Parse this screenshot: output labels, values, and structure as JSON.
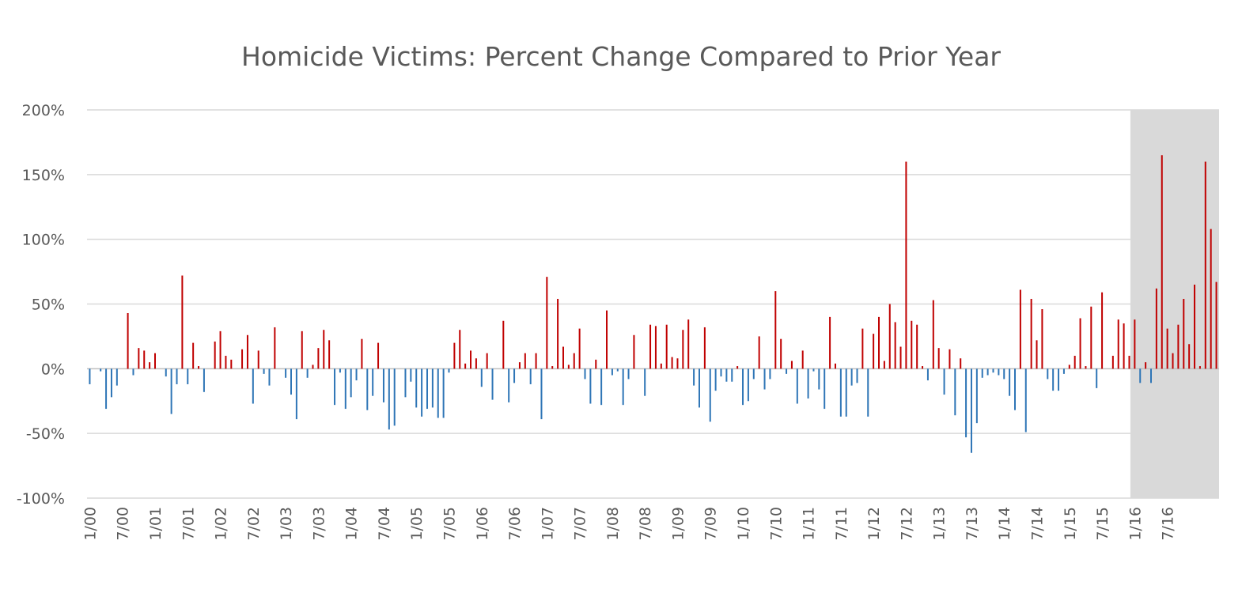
{
  "chart_data": {
    "type": "bar",
    "title": "Homicide Victims: Percent Change Compared to Prior Year",
    "xlabel": "",
    "ylabel": "",
    "ylim": [
      -100,
      200
    ],
    "yticks": [
      200,
      150,
      100,
      50,
      0,
      -50,
      -100
    ],
    "y_tick_labels": [
      "200%",
      "150%",
      "100%",
      "50%",
      "0%",
      "-50%",
      "-100%"
    ],
    "x_tick_labels": [
      "1/00",
      "7/00",
      "1/01",
      "7/01",
      "1/02",
      "7/02",
      "1/03",
      "7/03",
      "1/04",
      "7/04",
      "1/05",
      "7/05",
      "1/06",
      "7/06",
      "1/07",
      "7/07",
      "1/08",
      "7/08",
      "1/09",
      "7/09",
      "1/10",
      "7/10",
      "1/11",
      "7/11",
      "1/12",
      "7/12",
      "1/13",
      "7/13",
      "1/14",
      "7/14",
      "1/15",
      "7/15",
      "1/16",
      "7/16"
    ],
    "x_range": [
      "1/00",
      "12/16"
    ],
    "grid": true,
    "legend": "none",
    "highlight_region": {
      "from": "1/16",
      "to": "12/16",
      "color": "#d9d9d9"
    },
    "colors": {
      "positive": "#c00000",
      "negative": "#2e75b6",
      "grid": "#d9d9d9",
      "zero_line": "#bfbfbf"
    },
    "values": [
      -12,
      0,
      -2,
      -31,
      -22,
      -13,
      0,
      43,
      -5,
      16,
      14,
      5,
      12,
      0,
      -6,
      -35,
      -12,
      72,
      -12,
      20,
      2,
      -18,
      0,
      21,
      29,
      10,
      7,
      0,
      15,
      26,
      -27,
      14,
      -4,
      -13,
      32,
      0,
      -7,
      -20,
      -39,
      29,
      -7,
      3,
      16,
      30,
      22,
      -28,
      -3,
      -31,
      -22,
      -9,
      23,
      -32,
      -21,
      20,
      -26,
      -47,
      -44,
      0,
      -22,
      -10,
      -30,
      -37,
      -31,
      -30,
      -38,
      -38,
      -3,
      20,
      30,
      4,
      14,
      8,
      -14,
      12,
      -24,
      0,
      37,
      -26,
      -11,
      5,
      12,
      -12,
      12,
      -39,
      71,
      2,
      54,
      17,
      3,
      12,
      31,
      -8,
      -27,
      7,
      -28,
      45,
      -5,
      -2,
      -28,
      -8,
      26,
      0,
      -21,
      34,
      33,
      4,
      34,
      9,
      8,
      30,
      38,
      -13,
      -30,
      32,
      -41,
      -17,
      -6,
      -10,
      -10,
      2,
      -28,
      -25,
      -8,
      25,
      -16,
      -8,
      60,
      23,
      -4,
      6,
      -27,
      14,
      -23,
      -2,
      -16,
      -31,
      40,
      4,
      -37,
      -37,
      -13,
      -11,
      31,
      -37,
      27,
      40,
      6,
      50,
      36,
      17,
      160,
      37,
      34,
      2,
      -9,
      53,
      16,
      -20,
      15,
      -36,
      8,
      -53,
      -65,
      -42,
      -7,
      -5,
      -3,
      -5,
      -8,
      -21,
      -32,
      61,
      -49,
      54,
      22,
      46,
      -8,
      -17,
      -17,
      -4,
      3,
      10,
      39,
      2,
      48,
      -15,
      59,
      0,
      10,
      38,
      35,
      10,
      38,
      -11,
      5,
      -11,
      62,
      165,
      31,
      12,
      34,
      54,
      19,
      65,
      2,
      160,
      108,
      67
    ]
  }
}
